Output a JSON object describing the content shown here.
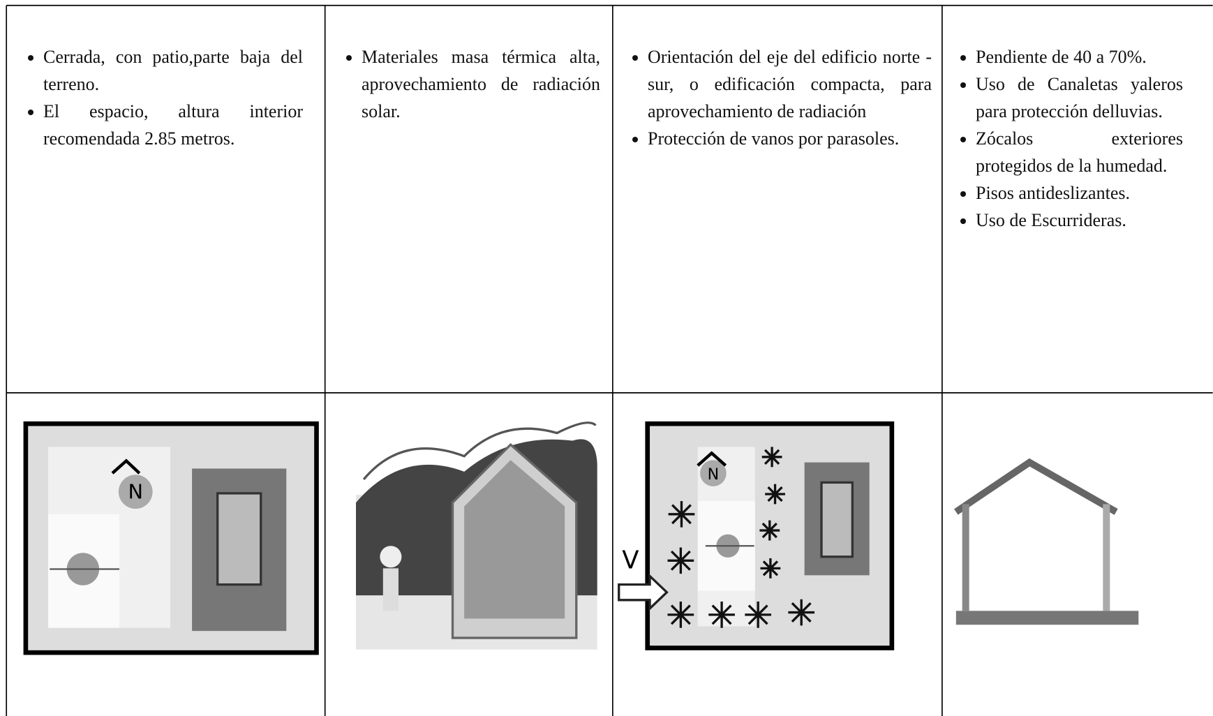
{
  "table": {
    "rows": [
      [
        {
          "items": [
            "Cerrada, con patio,parte baja del terreno.",
            "El espacio, altura interior recomendada 2.85 metros."
          ]
        },
        {
          "items": [
            "Materiales masa térmica alta, aprovechamiento de radiación solar."
          ]
        },
        {
          "items": [
            "Orientación del eje del edificio norte - sur, o edificación compacta, para aprovechamiento de radiación",
            "Protección de vanos por parasoles."
          ]
        },
        {
          "items": [
            "Pendiente de 40 a 70%.",
            "Uso de Canaletas yaleros para protección delluvias.",
            "Zócalos exteriores protegidos de la humedad.",
            "Pisos antideslizantes.",
            "Uso de Escurrideras."
          ]
        }
      ]
    ],
    "figures": [
      {
        "north": "N"
      },
      {},
      {
        "north": "N",
        "arrow": "V"
      },
      {}
    ]
  }
}
